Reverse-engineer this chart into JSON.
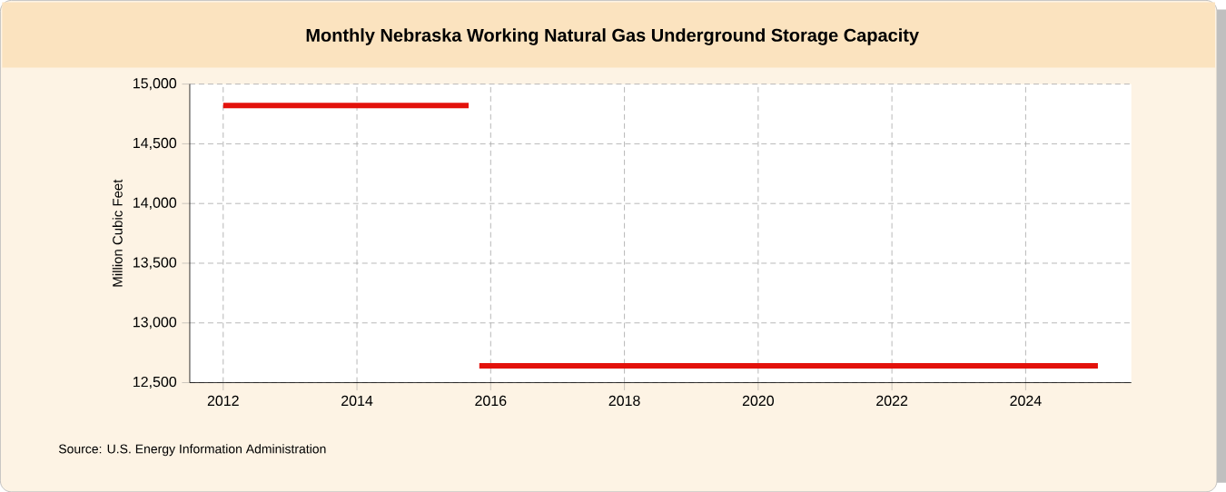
{
  "chart_data": {
    "type": "line",
    "title": "Monthly Nebraska Working Natural Gas Underground Storage Capacity",
    "ylabel": "Million Cubic Feet",
    "annotations": [
      "Source: U.S. Energy Information Administration"
    ],
    "x": [
      "2012-01",
      "2015-09",
      "2015-10",
      "2015-11",
      "2025-02"
    ],
    "series": [
      {
        "color": "#e3120b",
        "values": [
          14820,
          14820,
          null,
          12640,
          12640
        ]
      }
    ],
    "xlim": [
      "2011-07",
      "2025-08"
    ],
    "xticks": [
      "2012",
      "2014",
      "2016",
      "2018",
      "2020",
      "2022",
      "2024"
    ],
    "ylim": [
      12500,
      15000
    ],
    "yticks": [
      {
        "value": 12500,
        "label": "12,500"
      },
      {
        "value": 13000,
        "label": "13,000"
      },
      {
        "value": 13500,
        "label": "13,500"
      },
      {
        "value": 14000,
        "label": "14,000"
      },
      {
        "value": 14500,
        "label": "14,500"
      },
      {
        "value": 15000,
        "label": "15,000"
      }
    ],
    "grid": true,
    "marker": "none",
    "line_style": "solid"
  }
}
